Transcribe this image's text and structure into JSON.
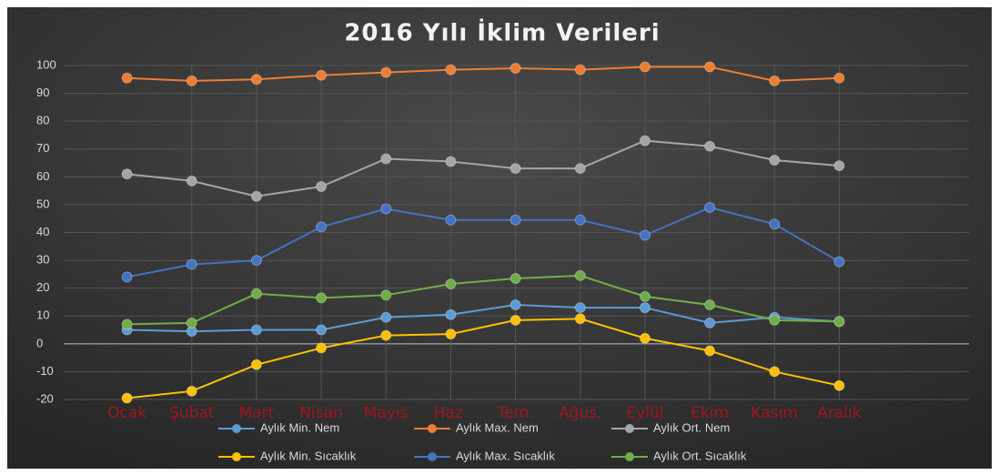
{
  "chart_data": {
    "type": "line",
    "title": "2016 Yılı İklim Verileri",
    "categories": [
      "Ocak",
      "Şubat",
      "Mart",
      "Nisan",
      "Mayıs",
      "Haz.",
      "Tem.",
      "Ağus.",
      "Eylül",
      "Ekim",
      "Kasım",
      "Aralık"
    ],
    "series": [
      {
        "name": "Aylık Min. Nem",
        "color": "#5b9bd5",
        "values": [
          5,
          4.5,
          5,
          5,
          9.5,
          10.5,
          14,
          13,
          13,
          7.5,
          9.5,
          8
        ]
      },
      {
        "name": "Aylık Max. Nem",
        "color": "#ed7d31",
        "values": [
          95.5,
          94.5,
          95,
          96.5,
          97.5,
          98.5,
          99,
          98.5,
          99.5,
          99.5,
          94.5,
          95.5
        ]
      },
      {
        "name": "Aylık Ort. Nem",
        "color": "#a5a5a5",
        "values": [
          61,
          58.5,
          53,
          56.5,
          66.5,
          65.5,
          63,
          63,
          73,
          71,
          66,
          64
        ]
      },
      {
        "name": "Aylık Min. Sıcaklık",
        "color": "#ffc000",
        "values": [
          -19.5,
          -17,
          -7.5,
          -1.5,
          3,
          3.5,
          8.5,
          9,
          2,
          -2.5,
          -10,
          -15
        ]
      },
      {
        "name": "Aylık Max. Sıcaklık",
        "color": "#4472c4",
        "values": [
          24,
          28.5,
          30,
          42,
          48.5,
          44.5,
          44.5,
          44.5,
          39,
          49,
          43,
          29.5
        ]
      },
      {
        "name": "Aylık Ort. Sıcaklık",
        "color": "#70ad47",
        "values": [
          7,
          7.5,
          18,
          16.5,
          17.5,
          21.5,
          23.5,
          24.5,
          17,
          14,
          8.5,
          8
        ]
      }
    ],
    "ylim": [
      -20,
      100
    ],
    "yticks": [
      -20,
      -10,
      0,
      10,
      20,
      30,
      40,
      50,
      60,
      70,
      80,
      90,
      100
    ],
    "grid": true
  }
}
